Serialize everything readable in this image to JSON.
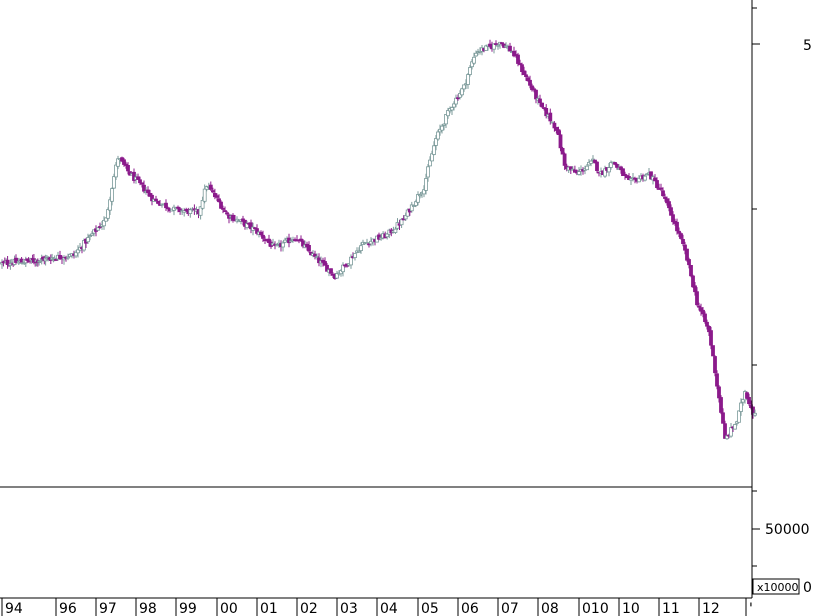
{
  "chart_data": {
    "type": "candlestick",
    "price_axis": {
      "tick_labels": [
        "5"
      ],
      "range": [
        0.9,
        5.6
      ]
    },
    "volume_axis": {
      "tick_labels": [
        "50000",
        "0"
      ],
      "multiplier_label": "x10000"
    },
    "x_axis": {
      "tick_labels": [
        "94",
        "96",
        "97",
        "98",
        "99",
        "00",
        "01",
        "02",
        "03",
        "04",
        "05",
        "06",
        "07",
        "08",
        "010",
        "10",
        "11",
        "12",
        "'"
      ]
    },
    "colors": {
      "up": "#7b9a9a",
      "down": "#8b1a8b",
      "axis": "#000000"
    },
    "series": [
      {
        "name": "",
        "keypoints_close": [
          [
            1994.0,
            2.05
          ],
          [
            1995.5,
            2.08
          ],
          [
            1996.5,
            2.12
          ],
          [
            1997.3,
            2.45
          ],
          [
            1997.6,
            3.15
          ],
          [
            1997.9,
            2.95
          ],
          [
            1998.5,
            2.65
          ],
          [
            1999.0,
            2.55
          ],
          [
            1999.6,
            2.52
          ],
          [
            1999.8,
            2.82
          ],
          [
            2000.3,
            2.5
          ],
          [
            2001.0,
            2.35
          ],
          [
            2001.5,
            2.18
          ],
          [
            2002.0,
            2.28
          ],
          [
            2002.5,
            2.1
          ],
          [
            2003.0,
            1.95
          ],
          [
            2003.3,
            2.05
          ],
          [
            2003.7,
            2.22
          ],
          [
            2004.3,
            2.3
          ],
          [
            2004.7,
            2.45
          ],
          [
            2005.2,
            2.8
          ],
          [
            2005.5,
            3.4
          ],
          [
            2005.9,
            3.9
          ],
          [
            2006.2,
            4.2
          ],
          [
            2006.5,
            4.85
          ],
          [
            2006.9,
            4.95
          ],
          [
            2007.1,
            5.05
          ],
          [
            2007.4,
            4.85
          ],
          [
            2007.8,
            4.3
          ],
          [
            2008.1,
            3.9
          ],
          [
            2008.5,
            3.55
          ],
          [
            2008.7,
            3.05
          ],
          [
            2009.0,
            2.95
          ],
          [
            2009.4,
            3.1
          ],
          [
            2009.6,
            2.95
          ],
          [
            2009.9,
            3.1
          ],
          [
            2010.3,
            2.85
          ],
          [
            2010.8,
            2.95
          ],
          [
            2011.1,
            2.75
          ],
          [
            2011.4,
            2.45
          ],
          [
            2011.7,
            2.15
          ],
          [
            2012.0,
            1.75
          ],
          [
            2012.3,
            1.55
          ],
          [
            2012.5,
            1.25
          ],
          [
            2012.7,
            1.0
          ],
          [
            2013.0,
            1.08
          ],
          [
            2013.2,
            1.22
          ],
          [
            2013.4,
            1.12
          ]
        ]
      }
    ]
  }
}
